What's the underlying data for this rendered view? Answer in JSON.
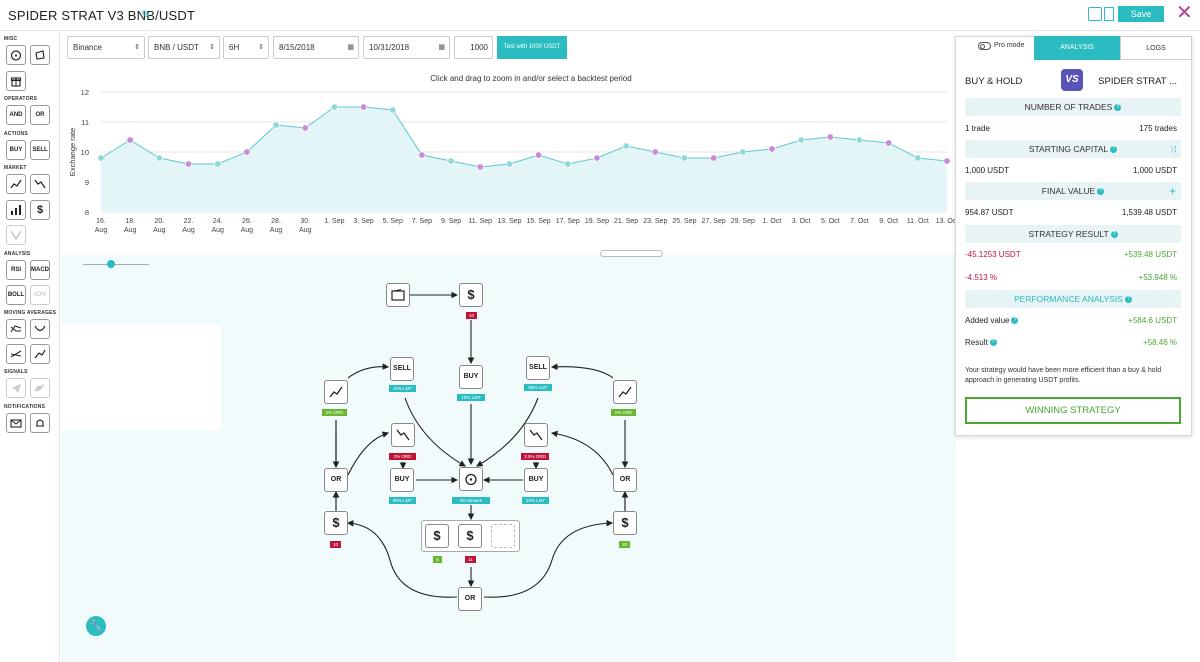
{
  "header": {
    "title": "SPIDER STRAT V3 BNB/USDT",
    "save_label": "Save"
  },
  "toolbar": {
    "exchange": "Binance",
    "pair": "BNB / USDT",
    "timeframe": "6H",
    "start_date": "8/15/2018",
    "end_date": "10/31/2018",
    "amount": "1000",
    "test_label": "Test with 1000 USDT"
  },
  "sidebar": {
    "sections": [
      "MISC",
      "OPERATORS",
      "ACTIONS",
      "MARKET",
      "ANALYSIS",
      "MOVING AVERAGES",
      "SIGNALS",
      "NOTIFICATIONS"
    ],
    "operators": [
      "AND",
      "OR"
    ],
    "actions": [
      "BUY",
      "SELL"
    ],
    "analysis": [
      "RSI",
      "MACD",
      "BOLL",
      "ICHI"
    ]
  },
  "chart": {
    "hint": "Click and drag to zoom in and/or select a backtest period",
    "ylabel": "Exchange rate"
  },
  "chart_data": {
    "type": "area",
    "ylabel": "Exchange rate",
    "ylim": [
      8,
      12
    ],
    "yticks": [
      8,
      9,
      10,
      11,
      12
    ],
    "xticks": [
      "16. Aug",
      "18. Aug",
      "20. Aug",
      "22. Aug",
      "24. Aug",
      "26. Aug",
      "28. Aug",
      "30. Aug",
      "1. Sep",
      "3. Sep",
      "5. Sep",
      "7. Sep",
      "9. Sep",
      "11. Sep",
      "13. Sep",
      "15. Sep",
      "17. Sep",
      "19. Sep",
      "21. Sep",
      "23. Sep",
      "25. Sep",
      "27. Sep",
      "29. Sep",
      "1. Oct",
      "3. Oct",
      "5. Oct",
      "7. Oct",
      "9. Oct",
      "11. Oct",
      "13. Oct"
    ],
    "x": [
      0,
      1,
      2,
      3,
      4,
      5,
      6,
      7,
      8,
      9,
      10,
      11,
      12,
      13,
      14,
      15,
      16,
      17,
      18,
      19,
      20,
      21,
      22,
      23,
      24,
      25,
      26,
      27,
      28,
      29
    ],
    "values": [
      9.8,
      10.4,
      9.8,
      9.6,
      9.6,
      10.0,
      10.9,
      10.8,
      11.5,
      11.5,
      11.4,
      9.9,
      9.7,
      9.5,
      9.6,
      9.9,
      9.6,
      9.8,
      10.2,
      10.0,
      9.8,
      9.8,
      10.0,
      10.1,
      10.4,
      10.5,
      10.4,
      10.3,
      9.8,
      9.7
    ],
    "grid": true,
    "legend": "none"
  },
  "panel": {
    "pro_mode": "Pro mode",
    "tabs": [
      "ANALYSIS",
      "LOGS"
    ],
    "buy_hold": "BUY & HOLD",
    "strat_name": "SPIDER STRAT ...",
    "logo": "VS",
    "trades_header": "NUMBER OF TRADES",
    "trades_left": "1 trade",
    "trades_right": "175 trades",
    "capital_header": "STARTING CAPITAL",
    "capital_left": "1,000 USDT",
    "capital_right": "1,000 USDT",
    "final_header": "FINAL VALUE",
    "final_left": "954.87 USDT",
    "final_right": "1,539.48 USDT",
    "result_header": "STRATEGY RESULT",
    "result_left_1": "-45.1253 USDT",
    "result_right_1": "+539.48 USDT",
    "result_left_2": "-4.513 %",
    "result_right_2": "+53.948 %",
    "perf_header": "PERFORMANCE ANALYSIS",
    "added_label": "Added value",
    "added_value": "+584.6 USDT",
    "res_label": "Result",
    "res_value": "+58.46 %",
    "summary": "Your strategy would have been more efficient than a buy & hold approach in generating USDT profits.",
    "win_label": "WINNING STRATEGY"
  },
  "graph": {
    "dollar_top_badge": "10",
    "sell_left": "SELL",
    "sell_left_badge": "10% LMT",
    "buy_top": "BUY",
    "buy_top_badge": "10% LMT",
    "sell_right": "SELL",
    "sell_right_badge": "90% LMT",
    "mkt_left_badge": "2% ORD",
    "mkt_right_badge": "2% ORD",
    "down_left_badge": "2% ORD",
    "down_right_badge": "2.5% ORD",
    "or_left": "OR",
    "or_right": "OR",
    "or_bottom": "OR",
    "buy_left": "BUY",
    "buy_left_badge": "90% LMT",
    "buy_right": "BUY",
    "buy_right_badge": "10% LMT",
    "timer_badge": "60 minutes",
    "dollar_left_badge": "10",
    "dollar_right_badge": "10",
    "group_badge_left": "5",
    "group_badge_mid": "11"
  }
}
